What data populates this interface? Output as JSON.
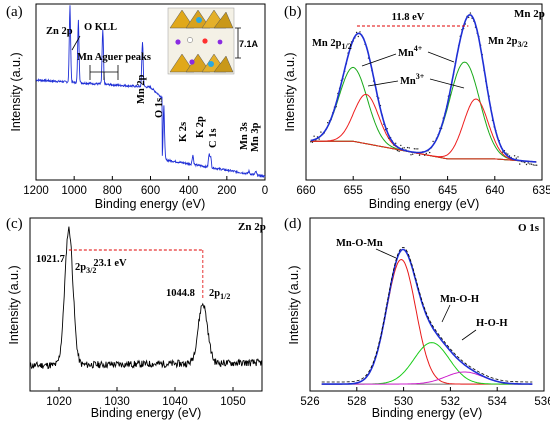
{
  "chart_data": [
    {
      "panel": "(a)",
      "type": "line",
      "xlabel": "Binding energy (eV)",
      "ylabel": "Intensity (a.u.)",
      "xlim": [
        1200,
        0
      ],
      "x_ticks": [
        1200,
        1000,
        800,
        600,
        400,
        200,
        0
      ],
      "line_color": "#1f2fd6",
      "peaks": [
        {
          "label": "Zn 2p",
          "x": 1022,
          "y": 0.88
        },
        {
          "label": "O KLL",
          "x": 978,
          "y": 0.72
        },
        {
          "label": "Mn Aguer peaks",
          "x": 850,
          "y": 0.62
        },
        {
          "label": "Mn 2p",
          "x": 642,
          "y": 0.52
        },
        {
          "label": "O 1s",
          "x": 530,
          "y": 0.62
        },
        {
          "label": "K 2s",
          "x": 378,
          "y": 0.11
        },
        {
          "label": "K 2p",
          "x": 293,
          "y": 0.14
        },
        {
          "label": "C 1s",
          "x": 285,
          "y": 0.12
        },
        {
          "label": "Mn 3s",
          "x": 84,
          "y": 0.03
        },
        {
          "label": "Mn 3p",
          "x": 48,
          "y": 0.04
        }
      ],
      "inset_label": "7.1A",
      "labels": {
        "zn2p": "Zn 2p",
        "okll": "O KLL",
        "mnauger": "Mn Aguer peaks",
        "mn2p": "Mn 2p",
        "o1s": "O 1s",
        "k2s": "K 2s",
        "k2p": "K 2p",
        "c1s": "C 1s",
        "mn3s": "Mn 3s",
        "mn3p": "Mn 3p"
      }
    },
    {
      "panel": "(b)",
      "title": "Mn 2p",
      "type": "line",
      "xlabel": "Binding energy (eV)",
      "ylabel": "Intensity (a.u.)",
      "xlim": [
        660,
        635
      ],
      "x_ticks": [
        660,
        655,
        650,
        645,
        640,
        635
      ],
      "splitting_label": "11.8 eV",
      "splitting_x": [
        654.6,
        642.8
      ],
      "series": [
        {
          "name": "Mn4+",
          "color": "#1aaa1a",
          "peaks": [
            {
              "x": 655.0,
              "h": 0.42,
              "w": 1.5
            },
            {
              "x": 643.2,
              "h": 0.55,
              "w": 1.6
            }
          ]
        },
        {
          "name": "Mn3+",
          "color": "#ee1f1f",
          "peaks": [
            {
              "x": 653.6,
              "h": 0.28,
              "w": 1.3
            },
            {
              "x": 642.0,
              "h": 0.34,
              "w": 1.3
            }
          ]
        }
      ],
      "labels": {
        "mn2p12": "Mn 2p",
        "mn2p12_sub": "1/2",
        "mn2p32": "Mn 2p",
        "mn2p32_sub": "3/2",
        "mn4": "Mn",
        "mn4_sup": "4+",
        "mn3": "Mn",
        "mn3_sup": "3+"
      }
    },
    {
      "panel": "(c)",
      "title": "Zn 2p",
      "type": "line",
      "xlabel": "Binding energy (eV)",
      "ylabel": "Intensity (a.u.)",
      "xlim": [
        1015,
        1055
      ],
      "x_ticks": [
        1020,
        1030,
        1040,
        1050
      ],
      "splitting_label": "23.1 eV",
      "peaks": [
        {
          "label": "2p",
          "sub": "3/2",
          "x": 1021.7,
          "value_label": "1021.7",
          "h": 0.96,
          "w": 0.7
        },
        {
          "label": "2p",
          "sub": "1/2",
          "x": 1044.8,
          "value_label": "1044.8",
          "h": 0.42,
          "w": 0.8
        }
      ]
    },
    {
      "panel": "(d)",
      "title": "O 1s",
      "type": "line",
      "xlabel": "Binding energy (eV)",
      "ylabel": "Intensity (a.u.)",
      "xlim": [
        526,
        536
      ],
      "x_ticks": [
        526,
        528,
        530,
        532,
        534,
        536
      ],
      "series": [
        {
          "name": "Mn-O-Mn",
          "color": "#e81a1a",
          "x": 529.9,
          "h": 0.72,
          "w": 0.62
        },
        {
          "name": "Mn-O-H",
          "color": "#1acc1a",
          "x": 531.2,
          "h": 0.24,
          "w": 0.75
        },
        {
          "name": "H-O-H",
          "color": "#cc22cc",
          "x": 532.6,
          "h": 0.07,
          "w": 0.8
        }
      ]
    }
  ]
}
